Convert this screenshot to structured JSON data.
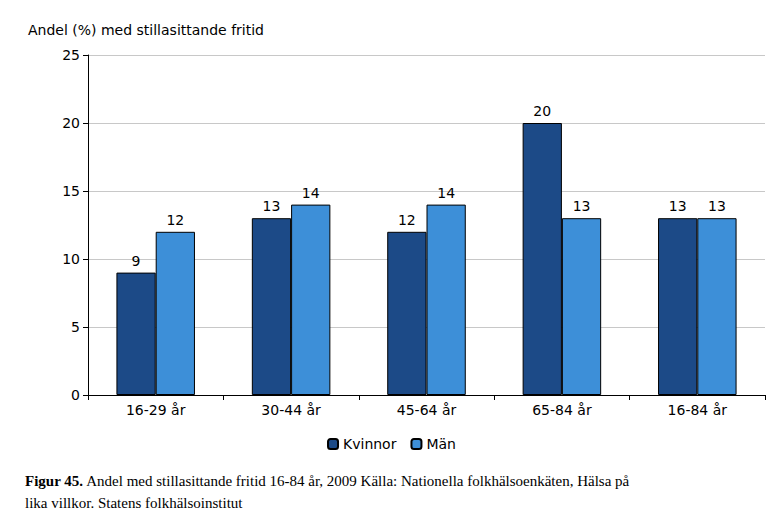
{
  "chart_data": {
    "type": "bar",
    "title": "Figur 45.",
    "subtitle": "Andel med stillasittande fritid 16-84 år, 2009 Källa: Nationella folkhälsoenkäten, Hälsa på lika villkor. Statens folkhälsoinstitut",
    "y_label": "Andel (%) med stillasittande fritid",
    "categories": [
      "16-29 år",
      "30-44 år",
      "45-64 år",
      "65-84 år",
      "16-84 år"
    ],
    "series": [
      {
        "name": "Kvinnor",
        "color": "#1c4a87",
        "values": [
          9,
          13,
          12,
          20,
          13
        ]
      },
      {
        "name": "Män",
        "color": "#3d8fd8",
        "values": [
          12,
          14,
          14,
          13,
          13
        ]
      }
    ],
    "ylim": [
      0,
      25
    ],
    "yticks": [
      0,
      5,
      10,
      15,
      20,
      25
    ],
    "grid": true,
    "legend": "bottom",
    "data_labels": true
  }
}
